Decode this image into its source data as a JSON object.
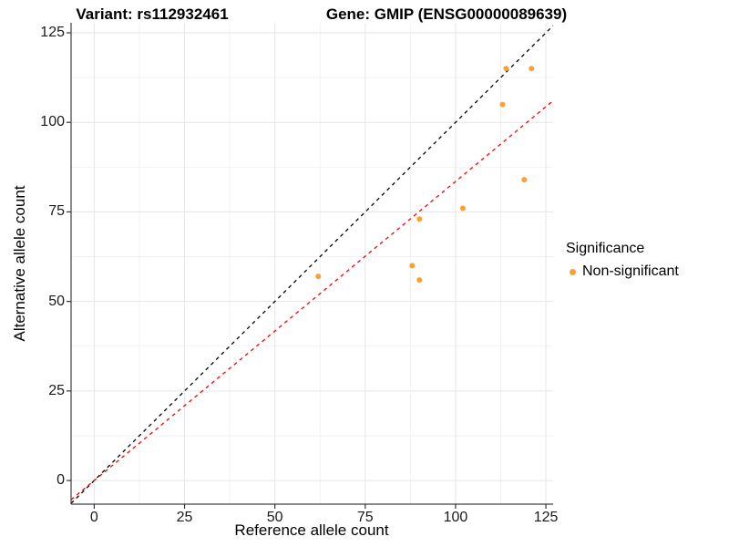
{
  "chart_data": {
    "type": "scatter",
    "title_left": "Variant: rs112932461",
    "title_right": "Gene: GMIP (ENSG00000089639)",
    "xlabel": "Reference allele count",
    "ylabel": "Alternative allele count",
    "xticks": [
      0,
      25,
      50,
      75,
      100,
      125
    ],
    "yticks": [
      0,
      25,
      50,
      75,
      100,
      125
    ],
    "xlim": [
      -6.4,
      127.0
    ],
    "ylim": [
      -6.6,
      127.8
    ],
    "grid": {
      "major": true,
      "minor": true
    },
    "points": [
      {
        "x": 62,
        "y": 57
      },
      {
        "x": 88,
        "y": 60
      },
      {
        "x": 90,
        "y": 56
      },
      {
        "x": 90,
        "y": 73
      },
      {
        "x": 102,
        "y": 76
      },
      {
        "x": 113,
        "y": 105
      },
      {
        "x": 114,
        "y": 115
      },
      {
        "x": 121,
        "y": 115
      },
      {
        "x": 119,
        "y": 84
      }
    ],
    "point_color": "#F9A232",
    "point_radius": 3,
    "lines": [
      {
        "name": "identity",
        "slope": 1,
        "intercept": 0,
        "color": "#000000",
        "dash": "4,4"
      },
      {
        "name": "ratio",
        "slope": 0.835,
        "intercept": 0,
        "color": "#FF0000",
        "dash": "4,4"
      }
    ],
    "legend": {
      "title": "Significance",
      "position": "right",
      "items": [
        {
          "label": "Non-significant",
          "color": "#F9A232"
        }
      ]
    },
    "colors": {
      "grid_major": "#E6E6E6",
      "grid_minor": "#F2F2F2",
      "axis_line": "#404040",
      "tick": "#333333",
      "text": "#000000",
      "background": "#FFFFFF"
    }
  }
}
